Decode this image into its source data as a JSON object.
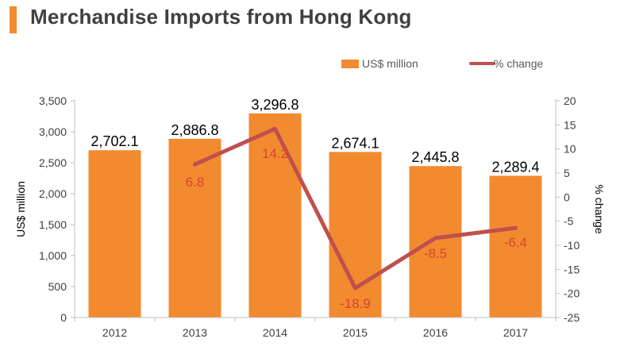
{
  "page": {
    "title": "Merchandise Imports from Hong Kong"
  },
  "colors": {
    "accent": "#f28a30",
    "bar": "#f28a30",
    "line": "#c0504d",
    "axis_text": "#404040",
    "label_dark": "#000000",
    "label_red": "#d9442b"
  },
  "chart_data": {
    "type": "bar",
    "categories": [
      "2012",
      "2013",
      "2014",
      "2015",
      "2016",
      "2017"
    ],
    "series": [
      {
        "name": "US$ million",
        "type": "bar",
        "axis": "left",
        "values": [
          2702.1,
          2886.8,
          3296.8,
          2674.1,
          2445.8,
          2289.4
        ],
        "labels": [
          "2,702.1",
          "2,886.8",
          "3,296.8",
          "2,674.1",
          "2,445.8",
          "2,289.4"
        ]
      },
      {
        "name": "% change",
        "type": "line",
        "axis": "right",
        "values": [
          null,
          6.8,
          14.2,
          -18.9,
          -8.5,
          -6.4
        ],
        "labels": [
          "",
          "6.8",
          "14.2",
          "-18.9",
          "-8.5",
          "-6.4"
        ]
      }
    ],
    "ylabel": "US$ million",
    "y2label": "% change",
    "ylim": [
      0,
      3500
    ],
    "y2lim": [
      -25,
      20
    ],
    "yticks": [
      "0",
      "500",
      "1,000",
      "1,500",
      "2,000",
      "2,500",
      "3,000",
      "3,500"
    ],
    "y2ticks": [
      "-25",
      "-20",
      "-15",
      "-10",
      "-5",
      "0",
      "5",
      "10",
      "15",
      "20"
    ],
    "legend": {
      "position": "top-right",
      "items": [
        "US$ million",
        "% change"
      ]
    },
    "grid": false
  }
}
